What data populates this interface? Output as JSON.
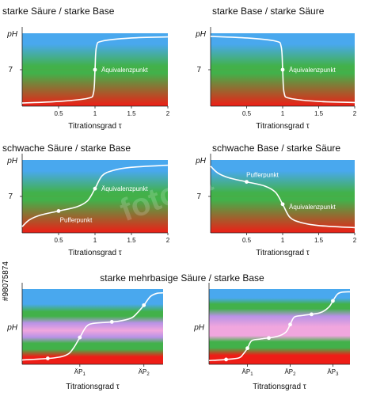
{
  "watermark": "#98075874",
  "watermark_logo": "fotolia",
  "colors": {
    "top": "#49a8ee",
    "mid": "#42b14a",
    "bottom": "#ee1d16",
    "pink": "#f0a6de",
    "purple": "#b892e6",
    "curve": "#ffffff",
    "axis": "#222222"
  },
  "chart_data": [
    {
      "type": "line",
      "title": "starke Säure / starke Base",
      "xlabel": "Titrationsgrad τ",
      "ylabel": "pH",
      "xlim": [
        0,
        2
      ],
      "ylim": [
        0,
        14
      ],
      "xticks": [
        "0.5",
        "1",
        "1.5",
        "2"
      ],
      "yticks": [
        "7"
      ],
      "series": [
        {
          "x": [
            0.0,
            0.5,
            0.9,
            0.98,
            1.0,
            1.02,
            1.1,
            1.5,
            2.0
          ],
          "y": [
            0.6,
            0.9,
            1.5,
            2.6,
            7.0,
            11.4,
            12.5,
            13.1,
            13.3
          ]
        }
      ],
      "markers": [
        {
          "x": 1.0,
          "y": 7.0,
          "label": "Äquivalenzpunkt"
        }
      ]
    },
    {
      "type": "line",
      "title": "starke Base / starke Säure",
      "xlabel": "Titrationsgrad τ",
      "ylabel": "pH",
      "xlim": [
        0,
        2
      ],
      "ylim": [
        0,
        14
      ],
      "xticks": [
        "0.5",
        "1",
        "1.5",
        "2"
      ],
      "yticks": [
        "7"
      ],
      "series": [
        {
          "x": [
            0.0,
            0.5,
            0.9,
            0.98,
            1.0,
            1.02,
            1.1,
            1.5,
            2.0
          ],
          "y": [
            13.4,
            13.1,
            12.5,
            11.4,
            7.0,
            2.6,
            1.5,
            0.9,
            0.7
          ]
        }
      ],
      "markers": [
        {
          "x": 1.0,
          "y": 7.0,
          "label": "Äquivalenzpunkt"
        }
      ]
    },
    {
      "type": "line",
      "title": "schwache Säure / starke Base",
      "xlabel": "Titrationsgrad τ",
      "ylabel": "pH",
      "xlim": [
        0,
        2
      ],
      "ylim": [
        0,
        14
      ],
      "xticks": [
        "0.5",
        "1",
        "1.5",
        "2"
      ],
      "yticks": [
        "7"
      ],
      "series": [
        {
          "x": [
            0.0,
            0.1,
            0.25,
            0.5,
            0.75,
            0.9,
            1.0,
            1.1,
            1.25,
            1.5,
            2.0
          ],
          "y": [
            1.2,
            2.5,
            3.4,
            4.2,
            5.0,
            6.2,
            8.5,
            11.0,
            12.0,
            12.6,
            13.0
          ]
        }
      ],
      "markers": [
        {
          "x": 0.5,
          "y": 4.2,
          "label": "Pufferpunkt"
        },
        {
          "x": 1.0,
          "y": 8.5,
          "label": "Äquivalenzpunkt"
        }
      ]
    },
    {
      "type": "line",
      "title": "schwache Base / starke Säure",
      "xlabel": "Titrationsgrad τ",
      "ylabel": "pH",
      "xlim": [
        0,
        2
      ],
      "ylim": [
        0,
        14
      ],
      "xticks": [
        "0.5",
        "1",
        "1.5",
        "2"
      ],
      "yticks": [
        "7"
      ],
      "series": [
        {
          "x": [
            0.0,
            0.1,
            0.25,
            0.5,
            0.75,
            0.9,
            1.0,
            1.1,
            1.25,
            1.5,
            2.0
          ],
          "y": [
            12.8,
            11.5,
            10.6,
            9.8,
            9.0,
            7.8,
            5.5,
            3.0,
            2.0,
            1.4,
            1.0
          ]
        }
      ],
      "markers": [
        {
          "x": 0.5,
          "y": 9.8,
          "label": "Pufferpunkt"
        },
        {
          "x": 1.0,
          "y": 5.5,
          "label": "Äquivalenzpunkt"
        }
      ]
    },
    {
      "type": "line",
      "title": "starke mehrbasige Säure  / starke Base",
      "xlabel": "Titrationsgrad τ",
      "ylabel": "pH",
      "xlim": [
        0,
        2.2
      ],
      "ylim": [
        0,
        14
      ],
      "xticks": [
        {
          "base": "ÄP",
          "sub": "1",
          "x": 0.9
        },
        {
          "base": "ÄP",
          "sub": "2",
          "x": 1.9
        }
      ],
      "series": [
        {
          "x": [
            0.0,
            0.5,
            0.7,
            0.8,
            0.9,
            1.0,
            1.1,
            1.3,
            1.5,
            1.7,
            1.8,
            1.9,
            2.0,
            2.1,
            2.2
          ],
          "y": [
            0.8,
            1.2,
            1.8,
            3.0,
            5.0,
            7.0,
            7.6,
            7.8,
            8.0,
            8.6,
            9.6,
            11.0,
            12.6,
            13.2,
            13.3
          ]
        }
      ],
      "markers": [
        {
          "x": 0.4,
          "y": 1.1
        },
        {
          "x": 0.9,
          "y": 5.0
        },
        {
          "x": 1.4,
          "y": 7.9
        },
        {
          "x": 1.9,
          "y": 11.0
        }
      ]
    },
    {
      "type": "line",
      "title": "",
      "xlabel": "Titrationsgrad τ",
      "ylabel": "pH",
      "xlim": [
        0,
        3.3
      ],
      "ylim": [
        0,
        14
      ],
      "xticks": [
        {
          "base": "ÄP",
          "sub": "1",
          "x": 0.9
        },
        {
          "base": "ÄP",
          "sub": "2",
          "x": 1.9
        },
        {
          "base": "ÄP",
          "sub": "3",
          "x": 2.9
        }
      ],
      "series": [
        {
          "x": [
            0.0,
            0.4,
            0.7,
            0.8,
            0.9,
            1.0,
            1.2,
            1.6,
            1.8,
            1.9,
            2.0,
            2.2,
            2.6,
            2.8,
            2.9,
            3.0,
            3.1,
            3.3
          ],
          "y": [
            0.7,
            0.9,
            1.2,
            1.9,
            3.0,
            4.4,
            4.7,
            5.2,
            6.0,
            7.4,
            8.8,
            9.1,
            9.6,
            10.6,
            11.8,
            13.0,
            13.4,
            13.5
          ]
        }
      ],
      "markers": [
        {
          "x": 0.4,
          "y": 0.9
        },
        {
          "x": 0.9,
          "y": 3.0
        },
        {
          "x": 1.4,
          "y": 4.9
        },
        {
          "x": 1.9,
          "y": 7.4
        },
        {
          "x": 2.4,
          "y": 9.3
        },
        {
          "x": 2.9,
          "y": 11.8
        }
      ]
    }
  ]
}
